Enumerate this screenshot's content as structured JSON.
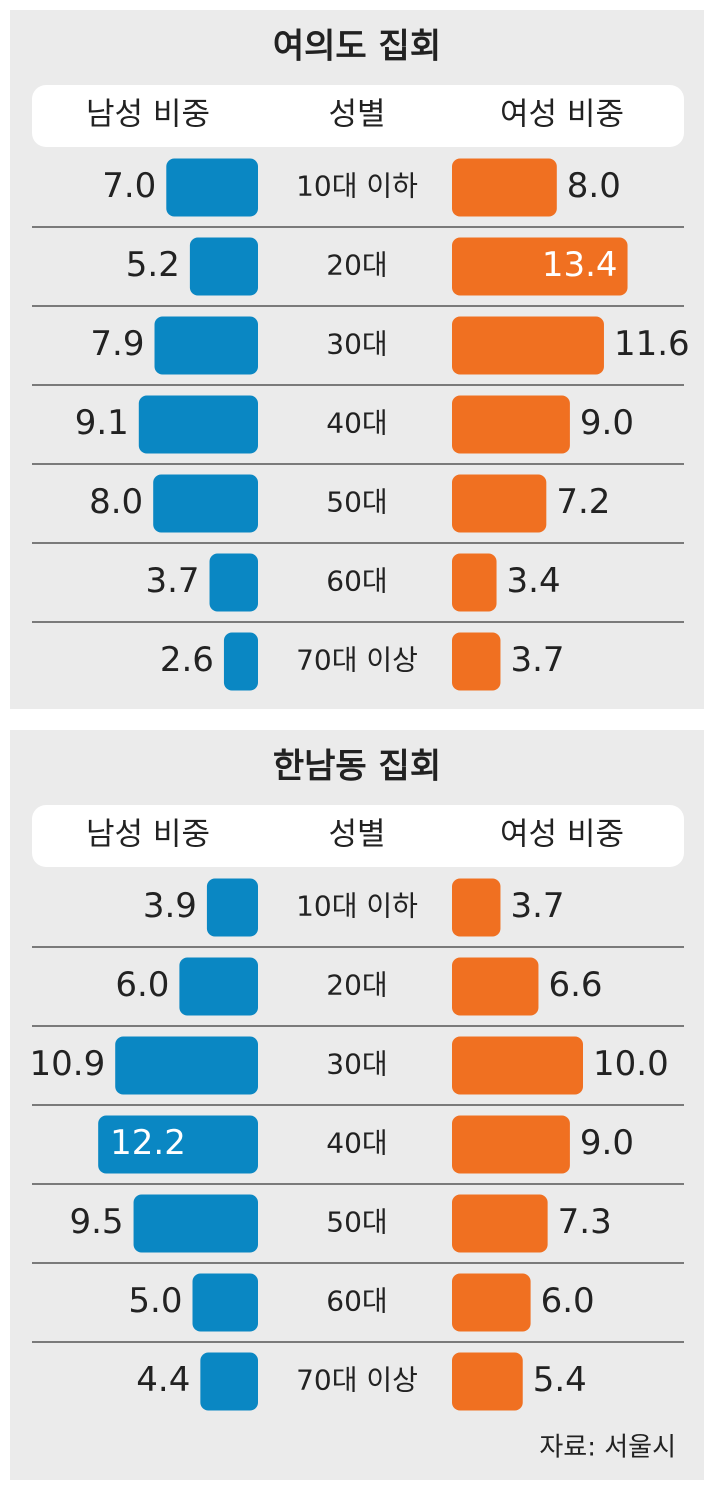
{
  "chart_data": [
    {
      "type": "butterfly-bar",
      "title": "여의도 집회",
      "category_label": "성별",
      "categories": [
        "10대 이하",
        "20대",
        "30대",
        "40대",
        "50대",
        "60대",
        "70대 이상"
      ],
      "series": [
        {
          "name": "남성 비중",
          "color": "#0a87c3",
          "values": [
            7.0,
            5.2,
            7.9,
            9.1,
            8.0,
            3.7,
            2.6
          ],
          "value_labels": [
            "7.0",
            "5.2",
            "7.9",
            "9.1",
            "8.0",
            "3.7",
            "2.6"
          ]
        },
        {
          "name": "여성 비중",
          "color": "#f07021",
          "values": [
            8.0,
            13.4,
            11.6,
            9.0,
            7.2,
            3.4,
            3.7
          ],
          "value_labels": [
            "8.0",
            "13.4",
            "11.6",
            "9.0",
            "7.2",
            "3.4",
            "3.7"
          ]
        }
      ]
    },
    {
      "type": "butterfly-bar",
      "title": "한남동 집회",
      "category_label": "성별",
      "categories": [
        "10대 이하",
        "20대",
        "30대",
        "40대",
        "50대",
        "60대",
        "70대 이상"
      ],
      "series": [
        {
          "name": "남성 비중",
          "color": "#0a87c3",
          "values": [
            3.9,
            6.0,
            10.9,
            12.2,
            9.5,
            5.0,
            4.4
          ],
          "value_labels": [
            "3.9",
            "6.0",
            "10.9",
            "12.2",
            "9.5",
            "5.0",
            "4.4"
          ]
        },
        {
          "name": "여성 비중",
          "color": "#f07021",
          "values": [
            3.7,
            6.6,
            10.0,
            9.0,
            7.3,
            6.0,
            5.4
          ],
          "value_labels": [
            "3.7",
            "6.6",
            "10.0",
            "9.0",
            "7.3",
            "6.0",
            "5.4"
          ]
        }
      ],
      "source": "자료: 서울시"
    }
  ]
}
